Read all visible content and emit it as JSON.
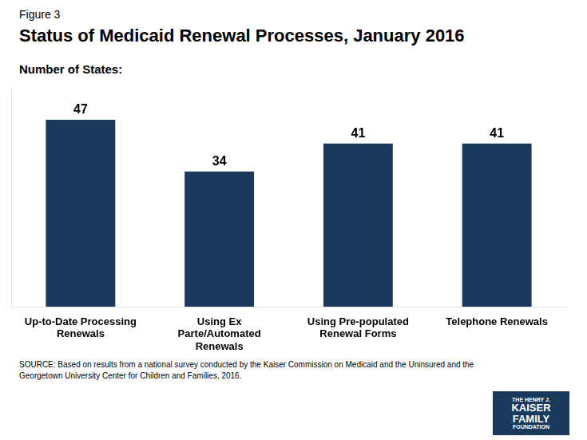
{
  "chart_data": {
    "type": "bar",
    "title": "Status of Medicaid Renewal Processes, January 2016",
    "ylabel": "Number of States:",
    "categories": [
      "Up-to-Date Processing\nRenewals",
      "Using Ex\nParte/Automated\nRenewals",
      "Using Pre-populated\nRenewal Forms",
      "Telephone Renewals"
    ],
    "values": [
      47,
      34,
      41,
      41
    ],
    "color": "#1a3a5c",
    "ylim": [
      0,
      55
    ],
    "grid": false,
    "data_labels": true,
    "tick_labels": "x",
    "annotations": [
      "Figure 3",
      "SOURCE: Based on results from a national survey conducted by the Kaiser Commission on Medicaid and the Uninsured and the\nGeorgetown University Center for Children and Families, 2016.",
      "THE HENRY J.",
      "KAISER",
      "FAMILY",
      "FOUNDATION"
    ]
  }
}
